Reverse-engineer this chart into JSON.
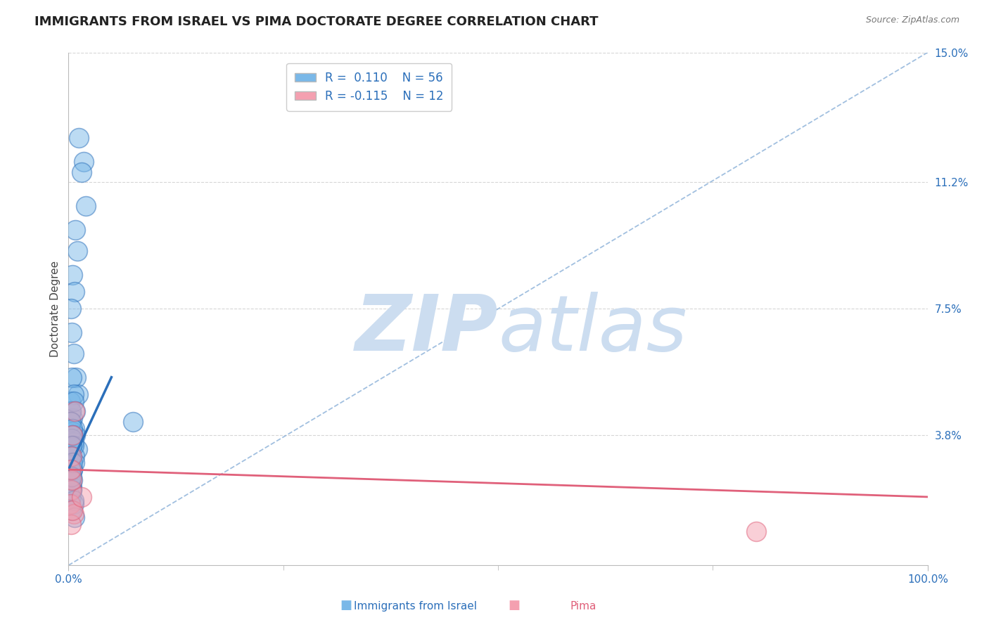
{
  "title": "IMMIGRANTS FROM ISRAEL VS PIMA DOCTORATE DEGREE CORRELATION CHART",
  "source_text": "Source: ZipAtlas.com",
  "xlabel_blue": "Immigrants from Israel",
  "xlabel_pink": "Pima",
  "ylabel": "Doctorate Degree",
  "xlim": [
    0.0,
    100.0
  ],
  "ylim": [
    0.0,
    15.0
  ],
  "yticks": [
    0.0,
    3.8,
    7.5,
    11.2,
    15.0
  ],
  "xticks": [
    0.0,
    100.0
  ],
  "xtick_labels": [
    "0.0%",
    "100.0%"
  ],
  "ytick_labels": [
    "",
    "3.8%",
    "7.5%",
    "11.2%",
    "15.0%"
  ],
  "blue_R": 0.11,
  "blue_N": 56,
  "pink_R": -0.115,
  "pink_N": 12,
  "blue_color": "#7ab8e8",
  "pink_color": "#f4a0b0",
  "blue_line_color": "#2b6fba",
  "pink_line_color": "#e0607a",
  "diagonal_color": "#8ab0d8",
  "watermark_color": "#ccddf0",
  "background_color": "#ffffff",
  "grid_color": "#cccccc",
  "title_fontsize": 13,
  "axis_label_fontsize": 11,
  "tick_fontsize": 11,
  "legend_fontsize": 12,
  "blue_scatter_x": [
    1.2,
    1.8,
    1.5,
    2.0,
    0.8,
    1.0,
    0.5,
    0.7,
    0.3,
    0.4,
    0.6,
    0.9,
    1.1,
    0.2,
    0.3,
    0.5,
    0.7,
    0.4,
    0.6,
    0.3,
    0.2,
    0.5,
    0.8,
    0.6,
    1.0,
    0.4,
    0.7,
    0.3,
    0.5,
    0.2,
    0.4,
    0.6,
    0.8,
    0.3,
    0.5,
    0.4,
    0.6,
    0.3,
    0.7,
    0.5,
    0.2,
    0.4,
    0.3,
    0.6,
    0.5,
    0.4,
    0.3,
    0.2,
    0.5,
    7.5,
    0.4,
    0.6,
    0.3,
    0.7,
    0.5,
    0.4
  ],
  "blue_scatter_y": [
    12.5,
    11.8,
    11.5,
    10.5,
    9.8,
    9.2,
    8.5,
    8.0,
    7.5,
    6.8,
    6.2,
    5.5,
    5.0,
    4.8,
    4.5,
    4.3,
    4.0,
    5.5,
    5.0,
    4.5,
    4.2,
    3.9,
    3.8,
    3.6,
    3.4,
    3.5,
    3.2,
    3.0,
    2.8,
    2.5,
    2.3,
    4.8,
    4.5,
    4.2,
    4.0,
    3.7,
    3.5,
    3.2,
    3.0,
    2.8,
    2.5,
    2.2,
    2.0,
    1.8,
    3.8,
    3.5,
    3.2,
    2.8,
    2.5,
    4.2,
    2.2,
    1.9,
    1.6,
    1.4,
    3.0,
    2.6
  ],
  "pink_scatter_x": [
    0.3,
    0.5,
    0.4,
    0.2,
    0.6,
    0.3,
    0.7,
    0.4,
    80.0,
    0.3,
    0.5,
    1.5
  ],
  "pink_scatter_y": [
    2.2,
    3.8,
    2.5,
    1.8,
    1.5,
    1.2,
    4.5,
    3.2,
    1.0,
    2.8,
    1.6,
    2.0
  ],
  "blue_trend_x0": 0.0,
  "blue_trend_x1": 5.0,
  "blue_trend_y0": 2.8,
  "blue_trend_y1": 5.5,
  "pink_trend_x0": 0.0,
  "pink_trend_x1": 100.0,
  "pink_trend_y0": 2.8,
  "pink_trend_y1": 2.0
}
